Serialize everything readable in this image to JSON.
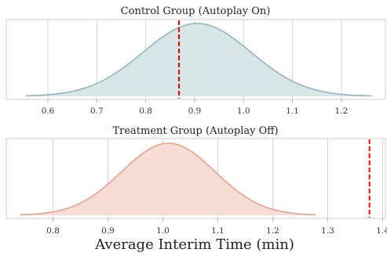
{
  "chart_data": [
    {
      "type": "area",
      "title": "Control Group (Autoplay On)",
      "color": "#8fb6bf",
      "fill": "#d9e6e8",
      "marker_color": "#ff0000",
      "distribution": {
        "mean": 0.905,
        "sd": 0.11,
        "x_range": [
          0.555,
          1.262
        ]
      },
      "observed_value": 0.868,
      "xlim": [
        0.515,
        1.29
      ],
      "xticks": [
        0.6,
        0.7,
        0.8,
        0.9,
        1.0,
        1.1,
        1.2
      ],
      "xtick_labels": [
        "0.6",
        "0.7",
        "0.8",
        "0.9",
        "1.0",
        "1.1",
        "1.2"
      ],
      "grid": true
    },
    {
      "type": "area",
      "title": "Treatment Group (Autoplay Off)",
      "color": "#e8a28a",
      "fill": "#f7ddd6",
      "marker_color": "#ff0000",
      "distribution": {
        "mean": 1.01,
        "sd": 0.085,
        "x_range": [
          0.74,
          1.278
        ]
      },
      "observed_value": 1.376,
      "xlim": [
        0.715,
        1.405
      ],
      "xticks": [
        0.8,
        0.9,
        1.0,
        1.1,
        1.2,
        1.3,
        1.4
      ],
      "xtick_labels": [
        "0.8",
        "0.9",
        "1.0",
        "1.1",
        "1.2",
        "1.3",
        "1.4"
      ],
      "grid": true
    }
  ],
  "xlabel": "Average Interim Time (min)"
}
